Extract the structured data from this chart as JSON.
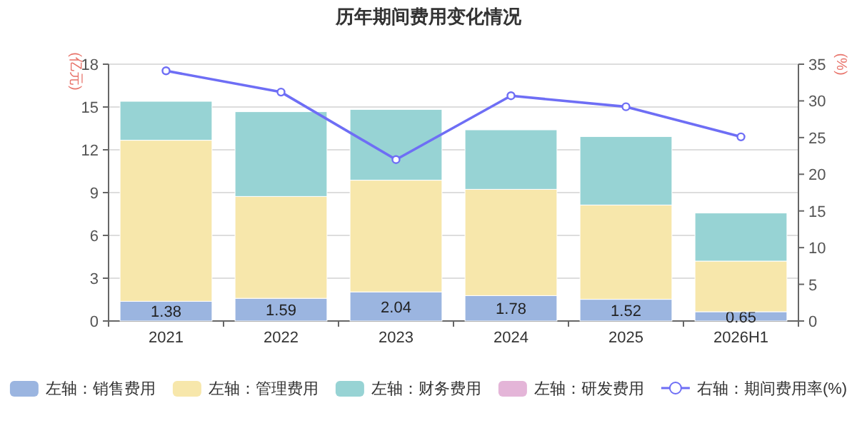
{
  "chart_data": {
    "type": "bar",
    "title": "历年期间费用变化情况",
    "ylabel": "(亿元)",
    "y2label": "(%)",
    "categories": [
      "2021",
      "2022",
      "2023",
      "2024",
      "2025",
      "2026H1"
    ],
    "stacked": true,
    "grid": "y",
    "legend": "bottom",
    "ylim": [
      0,
      18
    ],
    "yticks": [
      0,
      3,
      6,
      9,
      12,
      15,
      18
    ],
    "y2lim": [
      0,
      35
    ],
    "y2ticks": [
      0,
      5,
      10,
      15,
      20,
      25,
      30,
      35
    ],
    "series": [
      {
        "name": "左轴：销售费用",
        "color": "#9bb5e0",
        "values": [
          1.38,
          1.59,
          2.04,
          1.78,
          1.52,
          0.65
        ],
        "value_labels": [
          "1.38",
          "1.59",
          "2.04",
          "1.78",
          "1.52",
          "0.65"
        ]
      },
      {
        "name": "左轴：管理费用",
        "color": "#f7e7ab",
        "values": [
          11.29,
          7.14,
          7.83,
          7.45,
          6.61,
          3.55
        ]
      },
      {
        "name": "左轴：财务费用",
        "color": "#97d3d4",
        "values": [
          2.73,
          5.94,
          4.96,
          4.17,
          4.8,
          3.37
        ]
      },
      {
        "name": "左轴：研发费用",
        "color": "#e4b5d8",
        "values": [
          0,
          0,
          0,
          0,
          0,
          0
        ]
      },
      {
        "name": "右轴：期间费用率(%)",
        "type": "line",
        "axis": "y2",
        "marker": "circle",
        "color": "#6e6ef5",
        "values": [
          34.1,
          31.2,
          22.0,
          30.7,
          29.2,
          25.1
        ]
      }
    ]
  }
}
